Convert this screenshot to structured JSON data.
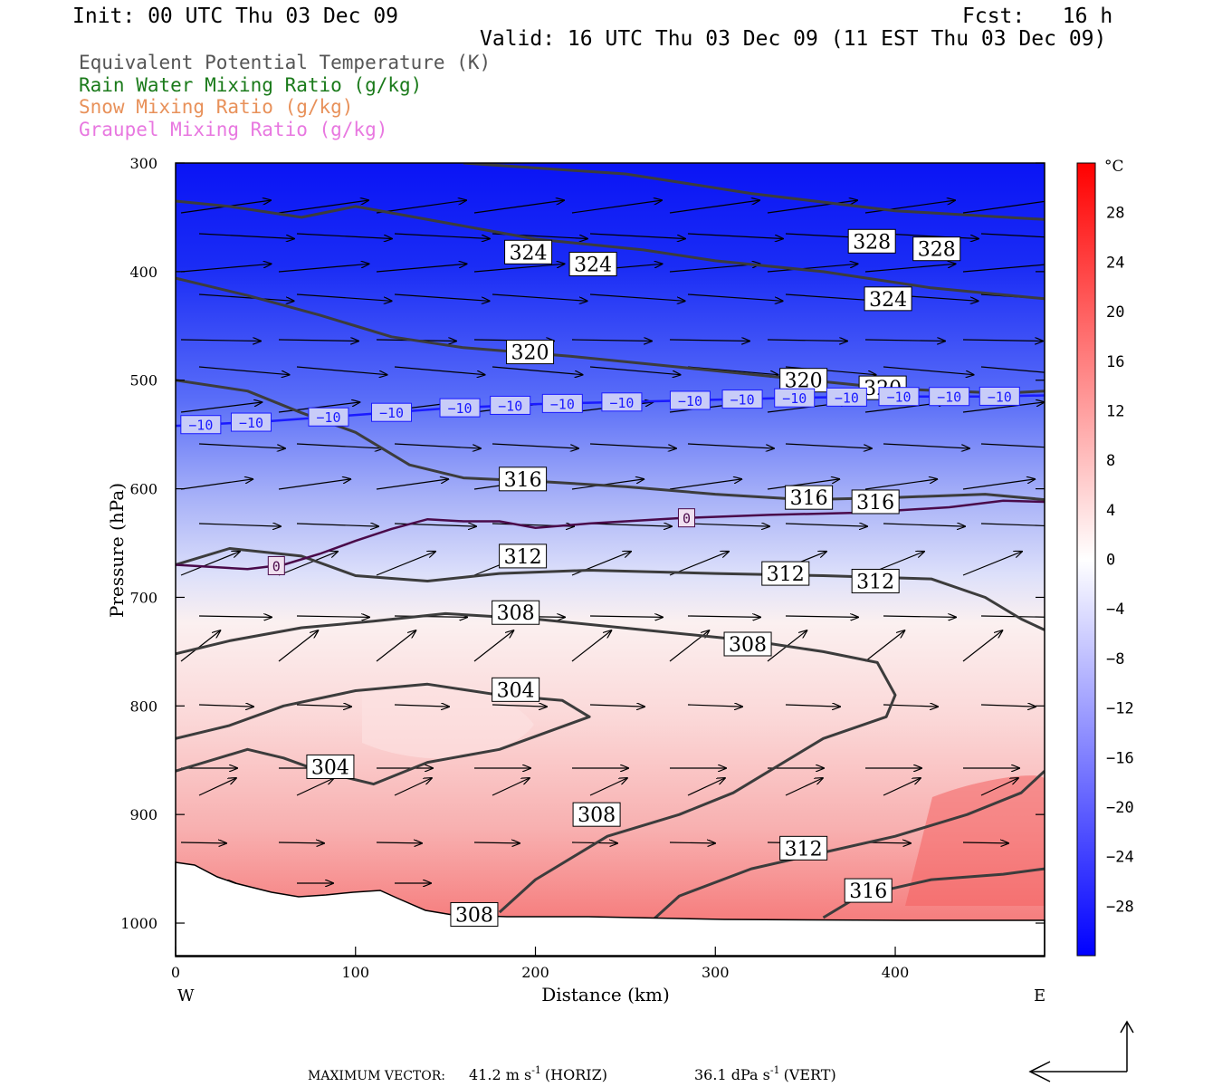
{
  "header": {
    "init": "Init: 00 UTC Thu 03 Dec 09",
    "fcst": "Fcst:   16 h",
    "valid": "Valid: 16 UTC Thu 03 Dec 09 (11 EST Thu 03 Dec 09)"
  },
  "legend": [
    {
      "text": "Equivalent Potential Temperature (K)",
      "color": "#555555"
    },
    {
      "text": "Rain Water Mixing Ratio (g/kg)",
      "color": "#1a7a1a"
    },
    {
      "text": "Snow Mixing Ratio (g/kg)",
      "color": "#e8915a"
    },
    {
      "text": "Graupel Mixing Ratio (g/kg)",
      "color": "#e878e0"
    }
  ],
  "footer": {
    "prefix": "MAXIMUM VECTOR:",
    "horiz_value": "41.2 m s",
    "horiz_exp": "-1",
    "horiz_label": "(HORIZ)",
    "vert_value": "36.1 dPa s",
    "vert_exp": "-1",
    "vert_label": "(VERT)"
  },
  "chart_data": {
    "type": "heatmap",
    "xlabel": "Distance (km)",
    "ylabel": "Pressure (hPa)",
    "xlim": [
      0,
      483
    ],
    "ylim": [
      1030,
      300
    ],
    "x_ticks": [
      0,
      100,
      200,
      300,
      400
    ],
    "y_ticks": [
      300,
      400,
      500,
      600,
      700,
      800,
      900,
      1000
    ],
    "x_end_labels": {
      "left": "W",
      "right": "E"
    },
    "colorbar": {
      "unit": "°C",
      "range": [
        -32,
        32
      ],
      "ticks": [
        28,
        24,
        20,
        16,
        12,
        8,
        4,
        0,
        -4,
        -8,
        -12,
        -16,
        -20,
        -24,
        -28
      ],
      "cold_color": "#0000ff",
      "warm_color": "#ff0000"
    },
    "temperature_profile": [
      {
        "p": 300,
        "t": -30
      },
      {
        "p": 400,
        "t": -24
      },
      {
        "p": 500,
        "t": -12
      },
      {
        "p": 600,
        "t": -4
      },
      {
        "p": 650,
        "t": 0
      },
      {
        "p": 700,
        "t": 4
      },
      {
        "p": 800,
        "t": 6
      },
      {
        "p": 900,
        "t": 10
      },
      {
        "p": 1000,
        "t": 16
      }
    ],
    "isotherms": [
      {
        "label": "-10",
        "color": "#1a1aff",
        "points": [
          [
            0,
            542
          ],
          [
            50,
            538
          ],
          [
            100,
            532
          ],
          [
            150,
            526
          ],
          [
            200,
            522
          ],
          [
            250,
            520
          ],
          [
            300,
            518
          ],
          [
            350,
            516
          ],
          [
            400,
            515
          ],
          [
            450,
            515
          ],
          [
            483,
            514
          ]
        ],
        "label_x": [
          14,
          42,
          85,
          120,
          158,
          186,
          215,
          248,
          286,
          315,
          344,
          373,
          402,
          430,
          458
        ]
      },
      {
        "label": "0",
        "color": "#4a0a4a",
        "points": [
          [
            0,
            670
          ],
          [
            40,
            674
          ],
          [
            60,
            670
          ],
          [
            80,
            660
          ],
          [
            100,
            648
          ],
          [
            120,
            637
          ],
          [
            140,
            628
          ],
          [
            160,
            630
          ],
          [
            180,
            630
          ],
          [
            200,
            636
          ],
          [
            230,
            632
          ],
          [
            280,
            627
          ],
          [
            330,
            624
          ],
          [
            380,
            622
          ],
          [
            430,
            617
          ],
          [
            460,
            611
          ],
          [
            483,
            612
          ]
        ],
        "label_x": [
          56,
          284
        ]
      }
    ],
    "theta_e_contours": [
      {
        "value": 328,
        "points": [
          [
            160,
            300
          ],
          [
            250,
            310
          ],
          [
            320,
            328
          ],
          [
            400,
            344
          ],
          [
            483,
            352
          ]
        ],
        "label_pts": [
          [
            387,
            372
          ],
          [
            423,
            379
          ]
        ]
      },
      {
        "value": 324,
        "points": [
          [
            0,
            335
          ],
          [
            30,
            340
          ],
          [
            50,
            345
          ],
          [
            70,
            350
          ],
          [
            100,
            340
          ],
          [
            150,
            355
          ],
          [
            200,
            370
          ],
          [
            260,
            380
          ],
          [
            300,
            390
          ],
          [
            360,
            400
          ],
          [
            420,
            415
          ],
          [
            483,
            425
          ]
        ],
        "label_pts": [
          [
            196,
            382
          ],
          [
            232,
            393
          ],
          [
            396,
            425
          ]
        ]
      },
      {
        "value": 320,
        "points": [
          [
            0,
            406
          ],
          [
            40,
            422
          ],
          [
            80,
            440
          ],
          [
            120,
            460
          ],
          [
            160,
            470
          ],
          [
            220,
            478
          ],
          [
            280,
            488
          ],
          [
            340,
            498
          ],
          [
            400,
            508
          ],
          [
            460,
            512
          ],
          [
            483,
            510
          ]
        ],
        "label_pts": [
          [
            197,
            474
          ],
          [
            349,
            500
          ],
          [
            393,
            507
          ]
        ]
      },
      {
        "value": 316,
        "points": [
          [
            0,
            500
          ],
          [
            40,
            510
          ],
          [
            70,
            530
          ],
          [
            100,
            548
          ],
          [
            130,
            578
          ],
          [
            160,
            590
          ],
          [
            200,
            593
          ],
          [
            250,
            598
          ],
          [
            300,
            605
          ],
          [
            350,
            610
          ],
          [
            400,
            608
          ],
          [
            450,
            605
          ],
          [
            483,
            610
          ]
        ],
        "label_pts": [
          [
            193,
            591
          ],
          [
            352,
            608
          ],
          [
            389,
            612
          ]
        ]
      },
      {
        "value": 312,
        "points": [
          [
            0,
            670
          ],
          [
            30,
            655
          ],
          [
            70,
            662
          ],
          [
            100,
            680
          ],
          [
            140,
            685
          ],
          [
            180,
            678
          ],
          [
            230,
            675
          ],
          [
            300,
            678
          ],
          [
            360,
            680
          ],
          [
            420,
            683
          ],
          [
            450,
            700
          ],
          [
            470,
            720
          ],
          [
            483,
            730
          ]
        ],
        "label_pts": [
          [
            193,
            662
          ],
          [
            339,
            678
          ],
          [
            389,
            685
          ]
        ]
      },
      {
        "value": 308,
        "points": [
          [
            0,
            752
          ],
          [
            30,
            740
          ],
          [
            70,
            728
          ],
          [
            110,
            722
          ],
          [
            150,
            715
          ],
          [
            200,
            720
          ],
          [
            260,
            730
          ],
          [
            320,
            740
          ],
          [
            360,
            750
          ],
          [
            390,
            760
          ],
          [
            400,
            790
          ],
          [
            395,
            810
          ],
          [
            360,
            830
          ],
          [
            330,
            860
          ],
          [
            310,
            880
          ],
          [
            280,
            900
          ],
          [
            240,
            920
          ],
          [
            200,
            960
          ],
          [
            180,
            990
          ]
        ],
        "label_pts": [
          [
            189,
            714
          ],
          [
            318,
            743
          ],
          [
            234,
            900
          ],
          [
            166,
            992
          ]
        ]
      },
      {
        "value": 304,
        "points": [
          [
            0,
            830
          ],
          [
            30,
            818
          ],
          [
            60,
            800
          ],
          [
            100,
            786
          ],
          [
            140,
            780
          ],
          [
            180,
            790
          ],
          [
            215,
            795
          ],
          [
            230,
            810
          ],
          [
            180,
            840
          ],
          [
            140,
            852
          ],
          [
            110,
            872
          ],
          [
            80,
            860
          ],
          [
            60,
            848
          ],
          [
            40,
            840
          ],
          [
            0,
            860
          ]
        ],
        "label_pts": [
          [
            189,
            785
          ],
          [
            86,
            856
          ]
        ]
      },
      {
        "value": 312,
        "points": [
          [
            260,
            1005
          ],
          [
            280,
            975
          ],
          [
            320,
            950
          ],
          [
            360,
            935
          ],
          [
            400,
            920
          ],
          [
            440,
            900
          ],
          [
            470,
            880
          ],
          [
            483,
            860
          ]
        ],
        "label_pts": [
          [
            349,
            931
          ]
        ]
      },
      {
        "value": 316,
        "points": [
          [
            360,
            995
          ],
          [
            380,
            975
          ],
          [
            420,
            960
          ],
          [
            460,
            955
          ],
          [
            483,
            950
          ]
        ],
        "label_pts": [
          [
            385,
            970
          ]
        ]
      }
    ],
    "max_vector": {
      "horiz": 41.2,
      "horiz_unit": "m s-1",
      "vert": 36.1,
      "vert_unit": "dPa s-1"
    }
  }
}
